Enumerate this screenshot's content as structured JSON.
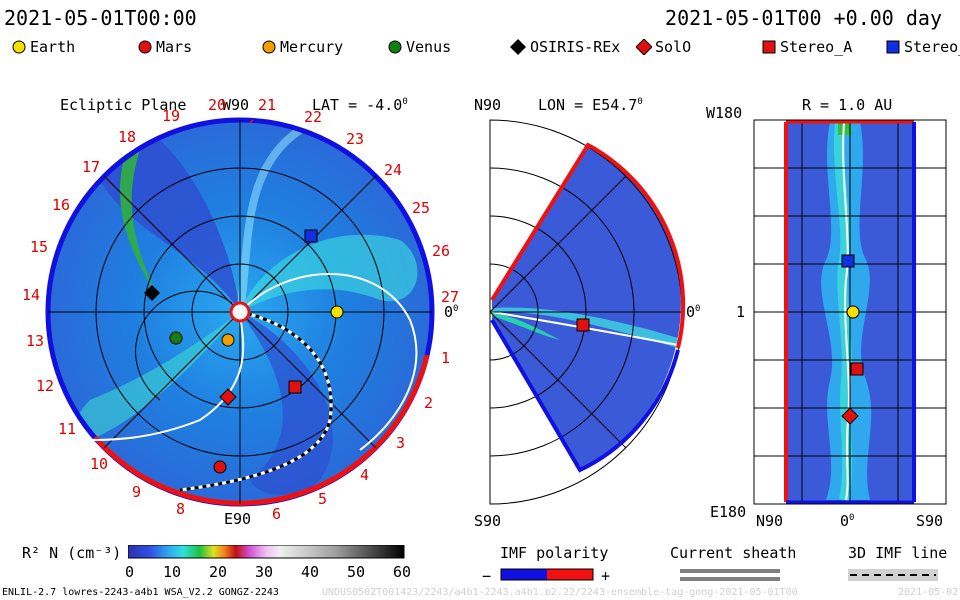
{
  "header": {
    "left_time": "2021-05-01T00:00",
    "right_time": "2021-05-01T00 +0.00 day"
  },
  "legend": [
    {
      "label": "Earth",
      "color": "#f5e000",
      "shape": "circle"
    },
    {
      "label": "Mars",
      "color": "#e01010",
      "shape": "circle"
    },
    {
      "label": "Mercury",
      "color": "#f0a000",
      "shape": "circle"
    },
    {
      "label": "Venus",
      "color": "#108010",
      "shape": "circle"
    },
    {
      "label": "OSIRIS-REx",
      "color": "#000000",
      "shape": "diamond"
    },
    {
      "label": "SolO",
      "color": "#e01010",
      "shape": "diamond"
    },
    {
      "label": "Stereo_A",
      "color": "#e01010",
      "shape": "square"
    },
    {
      "label": "Stereo_",
      "color": "#1030e0",
      "shape": "square"
    }
  ],
  "panel_ecliptic": {
    "title": "Ecliptic Plane",
    "lat": "LAT = -4.0",
    "top_label": "W90",
    "bottom_label": "E90",
    "right_label": "0",
    "carrington_numbers": [
      "1",
      "2",
      "3",
      "4",
      "5",
      "6",
      "8",
      "9",
      "10",
      "11",
      "12",
      "13",
      "14",
      "15",
      "16",
      "17",
      "18",
      "19",
      "20",
      "21",
      "22",
      "23",
      "24",
      "25",
      "26",
      "27"
    ]
  },
  "panel_meridional": {
    "lon": "LON = E54.7",
    "top_label": "N90",
    "bottom_label": "S90",
    "right_label": "0"
  },
  "panel_radial": {
    "title": "R = 1.0 AU",
    "left_top": "W180",
    "left_mid": "1",
    "left_bottom": "E180",
    "bottom_left": "N90",
    "bottom_mid": "0",
    "bottom_right": "S90"
  },
  "colorbar": {
    "label": "R² N (cm⁻³)",
    "ticks": [
      "0",
      "10",
      "20",
      "30",
      "40",
      "50",
      "60"
    ]
  },
  "imf": {
    "title": "IMF polarity",
    "minus": "−",
    "plus": "+",
    "negative_color": "#1010e0",
    "positive_color": "#f01010"
  },
  "current_sheath": {
    "title": "Current sheath"
  },
  "imf_line": {
    "title": "3D IMF line"
  },
  "footer": {
    "left": "ENLIL-2.7 lowres-2243-a4b1 WSA_V2.2 GONGZ-2243",
    "middle": "UNDUS0502T001423/2243/a4b1-2243.a4b1.b2.22/2243-ensemble-tag-gong-2021-05-01T00",
    "right": "2021-05-02"
  }
}
